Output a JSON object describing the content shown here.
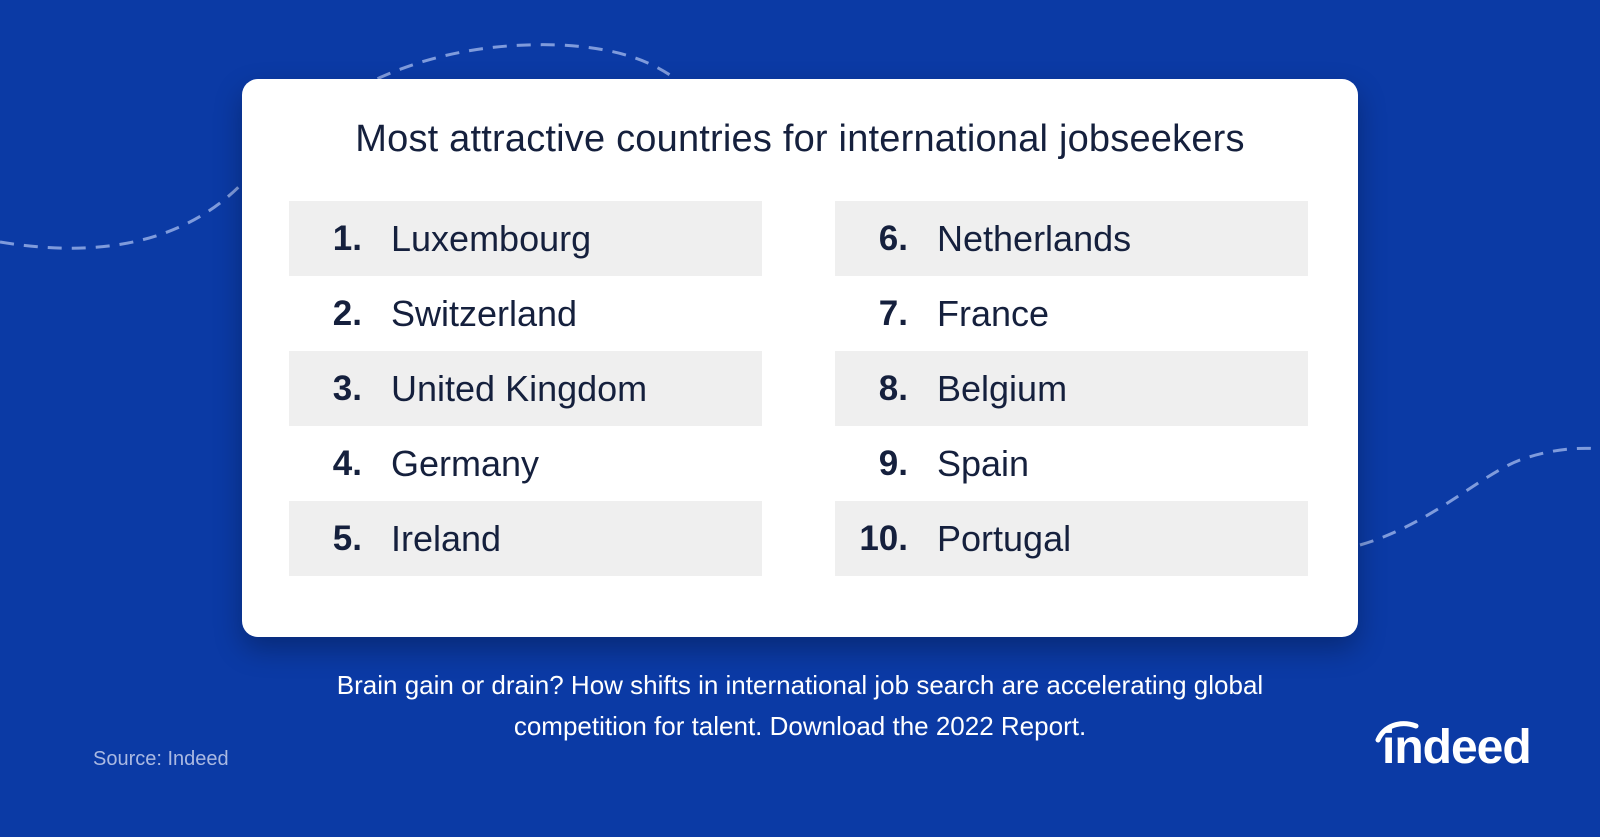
{
  "title": "Most attractive countries for international jobseekers",
  "rankings": [
    {
      "rank": "1.",
      "country": "Luxembourg"
    },
    {
      "rank": "2.",
      "country": "Switzerland"
    },
    {
      "rank": "3.",
      "country": "United Kingdom"
    },
    {
      "rank": "4.",
      "country": "Germany"
    },
    {
      "rank": "5.",
      "country": "Ireland"
    },
    {
      "rank": "6.",
      "country": "Netherlands"
    },
    {
      "rank": "7.",
      "country": "France"
    },
    {
      "rank": "8.",
      "country": "Belgium"
    },
    {
      "rank": "9.",
      "country": "Spain"
    },
    {
      "rank": "10.",
      "country": "Portugal"
    }
  ],
  "report_text": "Brain gain or drain? How shifts in international job search are accelerating global competition for talent. Download the 2022 Report.",
  "source": "Source: Indeed",
  "logo_text": "indeed",
  "colors": {
    "background": "#0b3aa5",
    "card": "#ffffff",
    "row_shade": "#efefef",
    "text_dark": "#15203d",
    "wave": "#7f9bdc"
  }
}
